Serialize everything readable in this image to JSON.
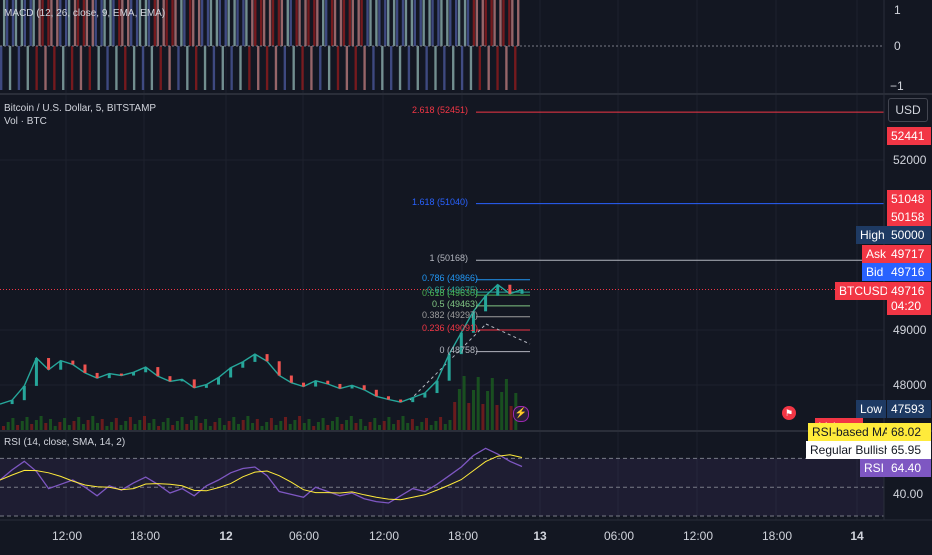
{
  "macd": {
    "label": "MACD (12, 26, close, 9, EMA, EMA)",
    "ticks": [
      "1",
      "0",
      "−1"
    ]
  },
  "main": {
    "title": "Bitcoin / U.S. Dollar, 5, BITSTAMP",
    "volume_label": "Vol · BTC",
    "currency_button": "USD",
    "price_ticks": [
      "52000",
      "49000",
      "48000"
    ],
    "fib_levels": [
      {
        "label": "2.618 (52451)",
        "price": 52451,
        "color": "#f23645"
      },
      {
        "label": "1.618 (51040)",
        "price": 51040,
        "color": "#2962ff"
      },
      {
        "label": "1 (50168)",
        "price": 50168,
        "color": "#b2b5be"
      },
      {
        "label": "0.786 (49866)",
        "price": 49866,
        "color": "#2196f3"
      },
      {
        "label": "0.65 (49675)",
        "price": 49675,
        "color": "#26a69a"
      },
      {
        "label": "0.618 (49630)",
        "price": 49630,
        "color": "#4caf50"
      },
      {
        "label": "0.5 (49463)",
        "price": 49463,
        "color": "#81c784"
      },
      {
        "label": "0.382 (49297)",
        "price": 49297,
        "color": "#9e9e9e"
      },
      {
        "label": "0.236 (49091)",
        "price": 49091,
        "color": "#f23645"
      },
      {
        "label": "0 (48758)",
        "price": 48758,
        "color": "#b2b5be"
      }
    ],
    "scale_badges": [
      {
        "text": "52441",
        "color": "#f23645"
      },
      {
        "text": "51048",
        "color": "#f23645"
      },
      {
        "text": "50158",
        "color": "#f23645"
      },
      {
        "text": "High",
        "color": "#1e3a63"
      },
      {
        "text": "50000",
        "color": "#1e3a63"
      },
      {
        "text": "Ask",
        "color": "#f23645"
      },
      {
        "text": "49717",
        "color": "#f23645"
      },
      {
        "text": "Bid",
        "color": "#2962ff"
      },
      {
        "text": "49716",
        "color": "#2962ff"
      },
      {
        "text": "BTCUSD",
        "color": "#f23645"
      },
      {
        "text": "49716",
        "color": "#f23645"
      },
      {
        "text": "04:20",
        "color": "#f23645"
      },
      {
        "text": "Low",
        "color": "#1e3a63"
      },
      {
        "text": "47593",
        "color": "#1e3a63"
      },
      {
        "text": "Volume",
        "color": "#f23645"
      }
    ]
  },
  "rsi": {
    "label": "RSI (14, close, SMA, 14, 2)",
    "badges": [
      {
        "text": "RSI-based MA",
        "color": "#ffeb3b"
      },
      {
        "text": "68.02",
        "color": "#ffeb3b"
      },
      {
        "text": "Regular Bullish",
        "color": "#ffffff"
      },
      {
        "text": "65.95",
        "color": "#ffffff"
      },
      {
        "text": "RSI",
        "color": "#7e57c2"
      },
      {
        "text": "64.40",
        "color": "#7e57c2"
      }
    ],
    "ticks": [
      "40.00"
    ]
  },
  "time_axis": [
    "12:00",
    "18:00",
    "12",
    "06:00",
    "12:00",
    "18:00",
    "13",
    "06:00",
    "12:00",
    "18:00",
    "14"
  ],
  "chart_data": {
    "type": "line",
    "symbol": "BTCUSD",
    "last_price": 49716,
    "ylim": [
      47550,
      52700
    ],
    "series": [
      {
        "values": [
          47950,
          48010,
          48230,
          48660,
          48480,
          48620,
          48560,
          48430,
          48350,
          48420,
          48390,
          48440,
          48520,
          48380,
          48300,
          48330,
          48200,
          48250,
          48360,
          48510,
          48600,
          48720,
          48610,
          48390,
          48280,
          48220,
          48310,
          48260,
          48190,
          48240,
          48170,
          48070,
          48020,
          47980,
          48050,
          48120,
          48310,
          48720,
          49050,
          49380,
          49620,
          49790,
          49650,
          49716
        ]
      }
    ],
    "rsi": {
      "range": [
        30,
        80
      ],
      "bands": [
        70,
        50,
        30
      ],
      "values": [
        55,
        62,
        68,
        61,
        49,
        52,
        55,
        50,
        44,
        51,
        48,
        53,
        57,
        52,
        46,
        49,
        44,
        51,
        55,
        60,
        63,
        64,
        58,
        47,
        45,
        43,
        50,
        47,
        44,
        46,
        42,
        40,
        39,
        44,
        49,
        47,
        52,
        58,
        64,
        72,
        77,
        73,
        68,
        64.4
      ]
    },
    "macd_hist_sign": [
      1,
      1,
      1,
      -1,
      -1,
      1,
      -1,
      -1,
      1,
      1,
      -1,
      1,
      1,
      -1,
      -1,
      1,
      -1,
      1,
      1,
      1,
      1,
      -1,
      -1,
      -1,
      1,
      -1,
      -1,
      1,
      -1,
      -1,
      -1,
      1,
      1,
      1,
      1,
      1,
      1,
      1,
      1,
      1,
      -1,
      -1,
      -1,
      -1
    ]
  }
}
